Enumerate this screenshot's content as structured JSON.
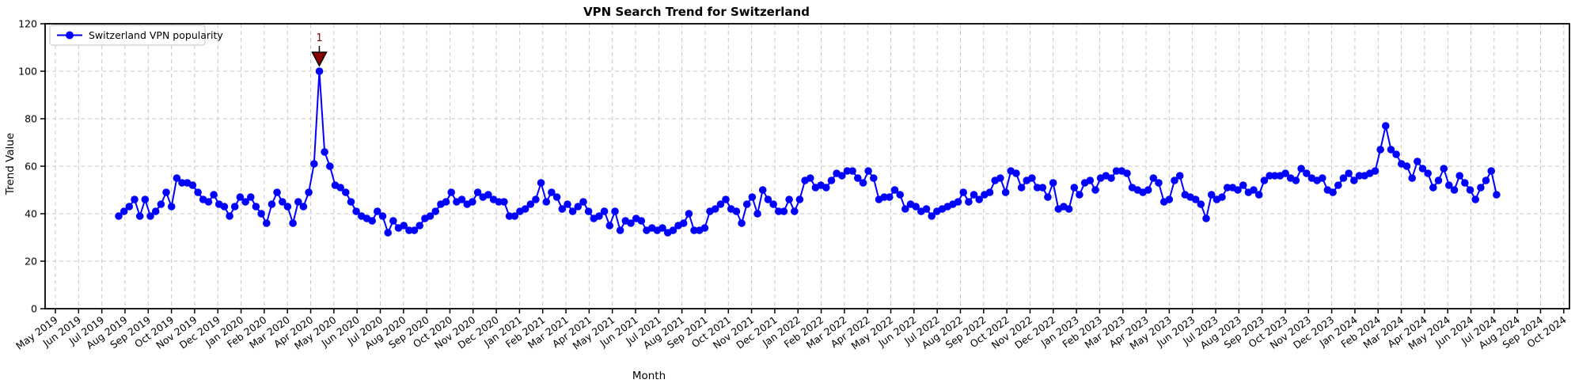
{
  "chart_data": {
    "type": "line",
    "title": "VPN Search Trend for Switzerland",
    "xlabel": "Month",
    "ylabel": "Trend Value",
    "ylim": [
      0,
      120
    ],
    "y_ticks": [
      0,
      20,
      40,
      60,
      80,
      100,
      120
    ],
    "grid": true,
    "line_color": "#0000ff",
    "marker": "circle",
    "legend": {
      "position": "upper left",
      "entries": [
        "Switzerland VPN popularity"
      ]
    },
    "x_tick_labels": [
      "May 2019",
      "Jun 2019",
      "Jul 2019",
      "Aug 2019",
      "Sep 2019",
      "Oct 2019",
      "Nov 2019",
      "Dec 2019",
      "Jan 2020",
      "Feb 2020",
      "Mar 2020",
      "Apr 2020",
      "May 2020",
      "Jun 2020",
      "Jul 2020",
      "Aug 2020",
      "Sep 2020",
      "Oct 2020",
      "Nov 2020",
      "Dec 2020",
      "Jan 2021",
      "Feb 2021",
      "Mar 2021",
      "Apr 2021",
      "May 2021",
      "Jun 2021",
      "Jul 2021",
      "Aug 2021",
      "Sep 2021",
      "Oct 2021",
      "Nov 2021",
      "Dec 2021",
      "Jan 2022",
      "Feb 2022",
      "Mar 2022",
      "Apr 2022",
      "May 2022",
      "Jun 2022",
      "Jul 2022",
      "Aug 2022",
      "Sep 2022",
      "Oct 2022",
      "Nov 2022",
      "Dec 2022",
      "Jan 2023",
      "Feb 2023",
      "Mar 2023",
      "Apr 2023",
      "May 2023",
      "Jun 2023",
      "Jul 2023",
      "Aug 2023",
      "Sep 2023",
      "Oct 2023",
      "Nov 2023",
      "Dec 2023",
      "Jan 2024",
      "Feb 2024",
      "Mar 2024",
      "Apr 2024",
      "May 2024",
      "Jun 2024",
      "Jul 2024",
      "Aug 2024",
      "Sep 2024",
      "Oct 2024"
    ],
    "x_unit": "weekly data points, late Jul 2019 through mid Jul 2024",
    "series": [
      {
        "name": "Switzerland VPN popularity",
        "values": [
          39,
          41,
          43,
          46,
          39,
          46,
          39,
          41,
          44,
          49,
          43,
          55,
          53,
          53,
          52,
          49,
          46,
          45,
          48,
          44,
          43,
          39,
          43,
          47,
          45,
          47,
          43,
          40,
          36,
          44,
          49,
          45,
          43,
          36,
          45,
          43,
          49,
          61,
          100,
          66,
          60,
          52,
          51,
          49,
          45,
          41,
          39,
          38,
          37,
          41,
          39,
          32,
          37,
          34,
          35,
          33,
          33,
          35,
          38,
          39,
          41,
          44,
          45,
          49,
          45,
          46,
          44,
          45,
          49,
          47,
          48,
          46,
          45,
          45,
          39,
          39,
          41,
          42,
          44,
          46,
          53,
          45,
          49,
          47,
          42,
          44,
          41,
          43,
          45,
          41,
          38,
          39,
          41,
          35,
          41,
          33,
          37,
          36,
          38,
          37,
          33,
          34,
          33,
          34,
          32,
          33,
          35,
          36,
          40,
          33,
          33,
          34,
          41,
          42,
          44,
          46,
          42,
          41,
          36,
          44,
          47,
          40,
          50,
          46,
          44,
          41,
          41,
          46,
          41,
          46,
          54,
          55,
          51,
          52,
          51,
          54,
          57,
          56,
          58,
          58,
          55,
          53,
          58,
          55,
          46,
          47,
          47,
          50,
          48,
          42,
          44,
          43,
          41,
          42,
          39,
          41,
          42,
          43,
          44,
          45,
          49,
          45,
          48,
          46,
          48,
          49,
          54,
          55,
          49,
          58,
          57,
          51,
          54,
          55,
          51,
          51,
          47,
          53,
          42,
          43,
          42,
          51,
          48,
          53,
          54,
          50,
          55,
          56,
          55,
          58,
          58,
          57,
          51,
          50,
          49,
          50,
          55,
          53,
          45,
          46,
          54,
          56,
          48,
          47,
          46,
          44,
          38,
          48,
          46,
          47,
          51,
          51,
          50,
          52,
          49,
          50,
          48,
          54,
          56,
          56,
          56,
          57,
          55,
          54,
          59,
          57,
          55,
          54,
          55,
          50,
          49,
          52,
          55,
          57,
          54,
          56,
          56,
          57,
          58,
          67,
          77,
          67,
          65,
          61,
          60,
          55,
          62,
          59,
          57,
          51,
          54,
          59,
          52,
          50,
          56,
          53,
          50,
          46,
          51,
          54,
          58,
          48
        ]
      }
    ],
    "annotation": {
      "label": "1",
      "marker": "triangle-down",
      "color": "#8b0000",
      "week_index": 38,
      "value": 100
    },
    "grid_color": "#c8c8c8"
  }
}
